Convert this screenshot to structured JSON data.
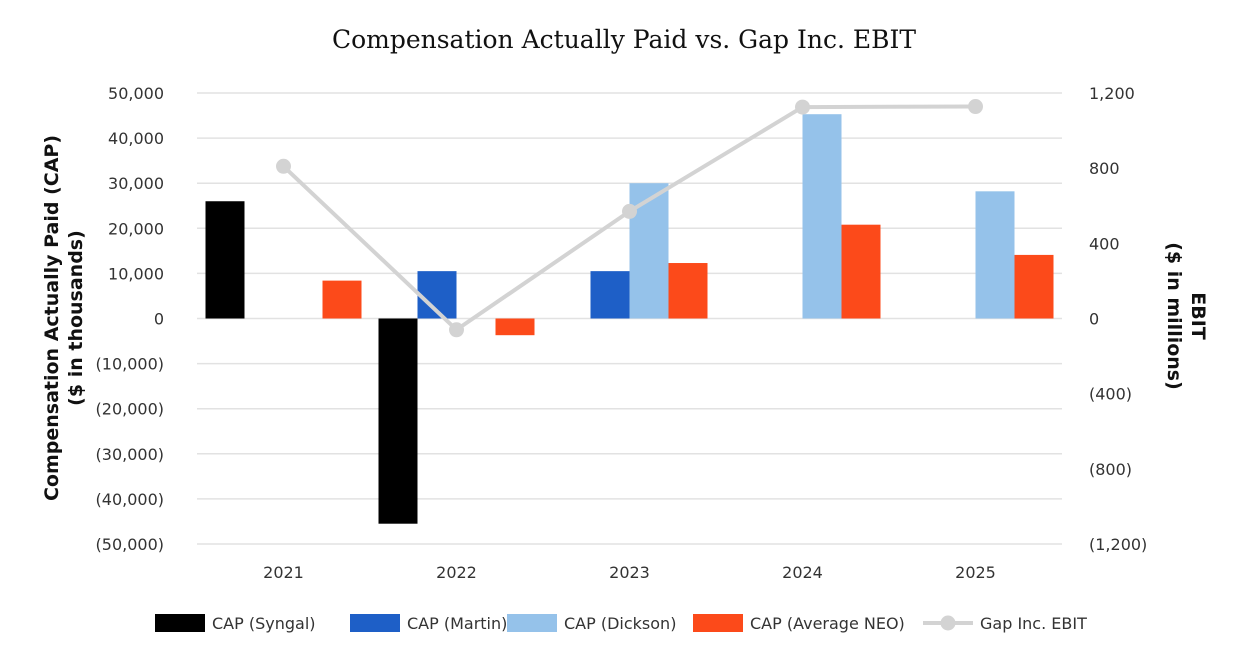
{
  "chart_data": {
    "type": "bar",
    "title": "Compensation Actually Paid vs. Gap Inc. EBIT",
    "categories": [
      "2021",
      "2022",
      "2023",
      "2024",
      "2025"
    ],
    "y_left": {
      "label_line1": "Compensation Actually Paid (CAP)",
      "label_line2": "($ in thousands)",
      "ylim": [
        -50000,
        50000
      ],
      "ticks": [
        50000,
        40000,
        30000,
        20000,
        10000,
        0,
        -10000,
        -20000,
        -30000,
        -40000,
        -50000
      ],
      "tick_labels": [
        "50,000",
        "40,000",
        "30,000",
        "20,000",
        "10,000",
        "0",
        "(10,000)",
        "(20,000)",
        "(30,000)",
        "(40,000)",
        "(50,000)"
      ]
    },
    "y_right": {
      "label_line1": "EBIT",
      "label_line2": "($ in millions)",
      "ylim": [
        -1200,
        1200
      ],
      "ticks": [
        1200,
        800,
        400,
        0,
        -400,
        -800,
        -1200
      ],
      "tick_labels": [
        "1,200",
        "800",
        "400",
        "0",
        "(400)",
        "(800)",
        "(1,200)"
      ]
    },
    "series": [
      {
        "name": "CAP (Syngal)",
        "color": "#000000",
        "axis": "left",
        "values": [
          26000,
          -45500,
          null,
          null,
          null
        ]
      },
      {
        "name": "CAP (Martin)",
        "color": "#1e5fc7",
        "axis": "left",
        "values": [
          null,
          10500,
          10500,
          null,
          null
        ]
      },
      {
        "name": "CAP (Dickson)",
        "color": "#95c2ea",
        "axis": "left",
        "values": [
          null,
          null,
          30000,
          45300,
          28200
        ]
      },
      {
        "name": "CAP (Average NEO)",
        "color": "#fc4a1a",
        "axis": "left",
        "values": [
          8400,
          -3700,
          12300,
          20800,
          14100
        ]
      }
    ],
    "line_series": {
      "name": "Gap Inc. EBIT",
      "color": "#d3d3d3",
      "axis": "right",
      "values": [
        810,
        -60,
        570,
        1125,
        1128
      ]
    },
    "legend_position": "bottom",
    "grid": true
  }
}
